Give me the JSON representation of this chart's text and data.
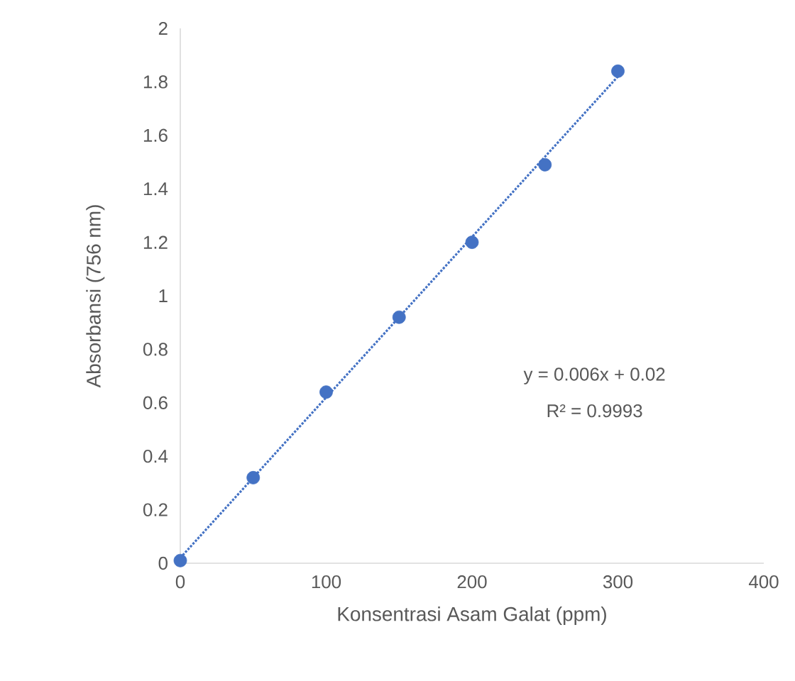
{
  "chart_data": {
    "type": "scatter",
    "xlabel": "Konsentrasi Asam Galat (ppm)",
    "ylabel": "Absorbansi (756 nm)",
    "annotations": [
      "y = 0.006x + 0.02",
      "R² = 0.9993"
    ],
    "xlim": [
      0,
      400
    ],
    "ylim": [
      0,
      2
    ],
    "xticks": [
      0,
      100,
      200,
      300,
      400
    ],
    "yticks": [
      0,
      0.2,
      0.4,
      0.6,
      0.8,
      1,
      1.2,
      1.4,
      1.6,
      1.8,
      2
    ],
    "marker": "circle",
    "series": [
      {
        "type": "line",
        "line_style": "dotted",
        "marker": "none",
        "color": "#4472c4",
        "x": [
          0,
          300
        ],
        "values": [
          0.02,
          1.82
        ]
      },
      {
        "color": "#4472c4",
        "x": [
          0,
          50,
          100,
          150,
          200,
          250,
          300
        ],
        "values": [
          0.01,
          0.32,
          0.64,
          0.92,
          1.2,
          1.49,
          1.84
        ]
      }
    ]
  }
}
